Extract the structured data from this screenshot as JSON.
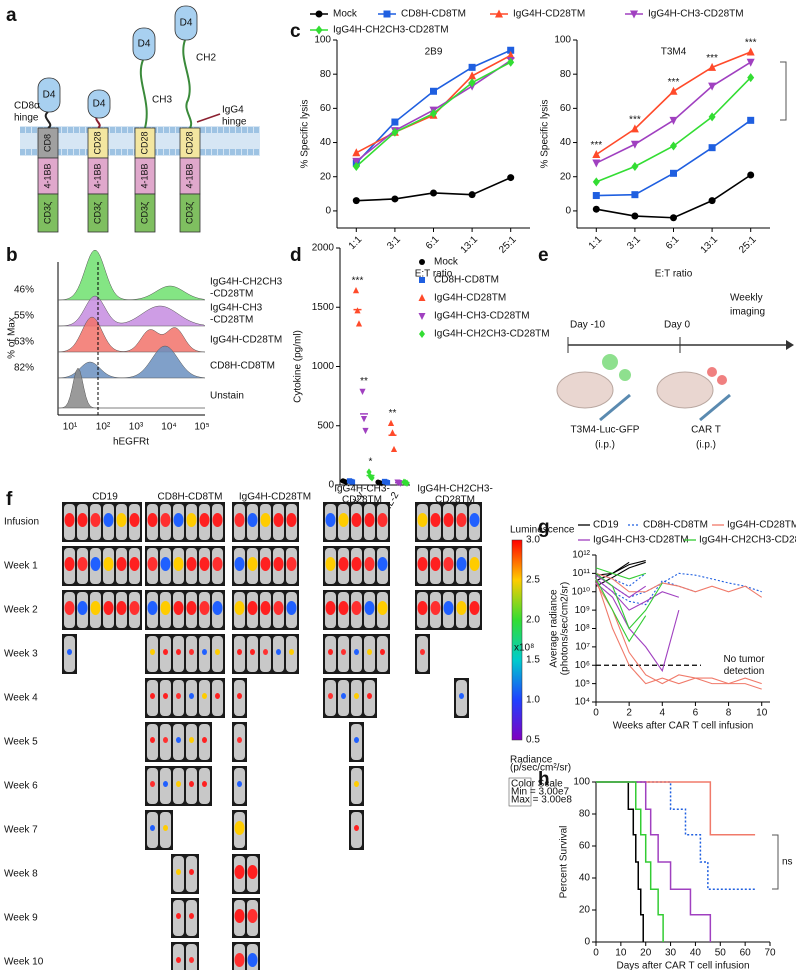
{
  "panel_labels": [
    "a",
    "b",
    "c",
    "d",
    "e",
    "f",
    "g",
    "h"
  ],
  "diagram_a": {
    "domain": "D4",
    "cd8a_hinge": [
      "CD8α",
      "hinge"
    ],
    "tm": [
      "CD8",
      "CD28",
      "CD28",
      "CD28"
    ],
    "costim": "4-1BB",
    "cd3": "CD3ζ",
    "ch3": "CH3",
    "ch2": "CH2",
    "igg4_hinge": [
      "IgG4",
      "hinge"
    ]
  },
  "histogram_b": {
    "ylabel": "% of Max",
    "xlabel": "hEGFRt",
    "xticks": [
      "10¹",
      "10²",
      "10³",
      "10⁴",
      "10⁵"
    ],
    "rows": [
      {
        "label": [
          "IgG4H-CH2CH3",
          "-CD28TM"
        ],
        "percent": "46%"
      },
      {
        "label": [
          "IgG4H-CH3",
          "-CD28TM"
        ],
        "percent": "55%"
      },
      {
        "label": [
          "IgG4H-CD28TM"
        ],
        "percent": "63%"
      },
      {
        "label": [
          "CD8H-CD8TM"
        ],
        "percent": "82%"
      },
      {
        "label": [
          "Unstain"
        ]
      }
    ]
  },
  "schematic_e": {
    "day1": "Day -10",
    "day2": "Day 0",
    "imaging": [
      "Weekly",
      "imaging"
    ],
    "cells": "T3M4-Luc-GFP",
    "cells_route": "(i.p.)",
    "cart": "CAR T",
    "cart_route": "(i.p.)"
  },
  "imaging_f": {
    "groups": [
      [
        "CD19"
      ],
      [
        "CD8H-CD8TM"
      ],
      [
        "IgG4H-CD28TM"
      ],
      [
        "IgG4H-CH3-",
        "CD28TM"
      ],
      [
        "IgG4H-CH2CH3-",
        "CD28TM"
      ]
    ],
    "rows": [
      "Infusion",
      "Week 1",
      "Week 2",
      "Week 3",
      "Week 4",
      "Week 5",
      "Week 6",
      "Week 7",
      "Week 8",
      "Week 9",
      "Week 10"
    ],
    "colorbar": {
      "title": "Luminescence",
      "ticks": [
        "3.0",
        "2.5",
        "2.0",
        "1.5",
        "1.0",
        "0.5"
      ],
      "unit": "x10⁸",
      "radiance": [
        "Radiance",
        "(p/sec/cm²/sr)"
      ],
      "scale": [
        "Color Scale",
        "Min = 3.00e7",
        "Max = 3.00e8"
      ]
    }
  },
  "chart_data": [
    {
      "type": "line",
      "title": "2B9",
      "ylabel": "% Specific lysis",
      "xlabel": "E:T ratio",
      "categories": [
        "1:1",
        "3:1",
        "6:1",
        "13:1",
        "25:1"
      ],
      "ylim": [
        -10,
        100
      ],
      "yticks": [
        0,
        20,
        40,
        60,
        80,
        100
      ],
      "series": [
        {
          "name": "Mock",
          "color": "#000000",
          "values": [
            6,
            7,
            10.5,
            9.5,
            19.5
          ]
        },
        {
          "name": "CD8H-CD8TM",
          "color": "#1f5fe0",
          "values": [
            28,
            52,
            70,
            84,
            94
          ]
        },
        {
          "name": "IgG4H-CD28TM",
          "color": "#ff4a2a",
          "values": [
            34,
            46,
            56,
            79,
            91
          ]
        },
        {
          "name": "IgG4H-CH3-CD28TM",
          "color": "#a040c0",
          "values": [
            29,
            47,
            59,
            73,
            88
          ]
        },
        {
          "name": "IgG4H-CH2CH3-CD28TM",
          "color": "#33dd33",
          "values": [
            26,
            46,
            57,
            75,
            87
          ]
        }
      ]
    },
    {
      "type": "line",
      "title": "T3M4",
      "ylabel": "% Specific lysis",
      "xlabel": "E:T ratio",
      "categories": [
        "1:1",
        "3:1",
        "6:1",
        "13:1",
        "25:1"
      ],
      "ylim": [
        -10,
        100
      ],
      "yticks": [
        0,
        20,
        40,
        60,
        80,
        100
      ],
      "annotations": [
        "***",
        "***",
        "***",
        "***",
        "***"
      ],
      "series": [
        {
          "color": "#000000",
          "values": [
            1,
            -3,
            -4,
            6,
            21
          ]
        },
        {
          "color": "#1f5fe0",
          "values": [
            9,
            9.5,
            22,
            37,
            53
          ]
        },
        {
          "color": "#ff4a2a",
          "values": [
            33,
            48,
            70,
            84,
            93
          ]
        },
        {
          "color": "#a040c0",
          "values": [
            28,
            39,
            53,
            73,
            87
          ]
        },
        {
          "color": "#33dd33",
          "values": [
            17,
            26,
            38,
            55,
            78
          ]
        }
      ]
    },
    {
      "type": "dot",
      "ylabel": "Cytokine (pg/ml)",
      "categories": [
        "IFN-γ",
        "IL-2"
      ],
      "ylim": [
        0,
        2000
      ],
      "yticks": [
        0,
        500,
        1000,
        1500,
        2000
      ],
      "series": [
        {
          "name": "Mock",
          "color": "#000000",
          "values": [
            30,
            20
          ],
          "points": [
            [
              35,
              30,
              25
            ],
            [
              25,
              20,
              15
            ]
          ]
        },
        {
          "name": "CD8H-CD8TM",
          "color": "#1f5fe0",
          "values": [
            30,
            25
          ],
          "points": [
            [
              35,
              30,
              25
            ],
            [
              30,
              25,
              20
            ]
          ]
        },
        {
          "name": "IgG4H-CD28TM",
          "color": "#ff4a2a",
          "values": [
            1480,
            420
          ],
          "points": [
            [
              1640,
              1470,
              1360
            ],
            [
              520,
              440,
              300
            ]
          ],
          "annotations": [
            "***",
            "**"
          ]
        },
        {
          "name": "IgG4H-CH3-CD28TM",
          "color": "#a040c0",
          "values": [
            600,
            20
          ],
          "points": [
            [
              790,
              560,
              460
            ],
            [
              25,
              20,
              15
            ]
          ],
          "annotations": [
            "**",
            null
          ]
        },
        {
          "name": "IgG4H-CH2CH3-CD28TM",
          "color": "#33dd33",
          "values": [
            80,
            20
          ],
          "points": [
            [
              110,
              70,
              60
            ],
            [
              25,
              20,
              15
            ]
          ],
          "annotations": [
            "*",
            null
          ]
        }
      ]
    },
    {
      "type": "line",
      "yscale": "log",
      "ylabel": [
        "Average radiance",
        "(photons/sec/cm2/sr)"
      ],
      "xlabel": "Weeks after CAR T cell infusion",
      "x": [
        0,
        1,
        2,
        3,
        4,
        5,
        6,
        7,
        8,
        9,
        10
      ],
      "xlim": [
        0,
        10.5
      ],
      "xticks": [
        0,
        2,
        4,
        6,
        8,
        10
      ],
      "ylim": [
        10000,
        1000000000000
      ],
      "yticks": [
        {
          "value": 10000,
          "label": "10⁴"
        },
        {
          "value": 100000,
          "label": "10⁵"
        },
        {
          "value": 1000000,
          "label": "10⁶"
        },
        {
          "value": 10000000,
          "label": "10⁷"
        },
        {
          "value": 100000000,
          "label": "10⁸"
        },
        {
          "value": 1000000000,
          "label": "10⁹"
        },
        {
          "value": 10000000000,
          "label": "10¹⁰"
        },
        {
          "value": 100000000000,
          "label": "10¹¹"
        },
        {
          "value": 1000000000000,
          "label": "10¹²"
        }
      ],
      "threshold": 1000000,
      "threshold_label": [
        "No tumor",
        "detection"
      ],
      "series": [
        {
          "name": "CD19",
          "color": "#000000",
          "linestyle": "solid",
          "values": [
            [
              40000000000.0,
              100000000000.0,
              300000000000.0,
              500000000000.0,
              null,
              null,
              null,
              null,
              null,
              null,
              null
            ],
            [
              20000000000.0,
              60000000000.0,
              200000000000.0,
              400000000000.0,
              null,
              null,
              null,
              null,
              null,
              null,
              null
            ],
            [
              80000000000.0,
              100000000000.0,
              400000000000.0,
              null,
              null,
              null,
              null,
              null,
              null,
              null,
              null
            ]
          ]
        },
        {
          "name": "CD8H-CD8TM",
          "color": "#1f5fe0",
          "linestyle": "dotted",
          "values": [
            [
              100000000000.0,
              20000000000.0,
              5000000000.0,
              10000000000.0,
              30000000000.0,
              100000000000.0,
              80000000000.0,
              50000000000.0,
              30000000000.0,
              20000000000.0,
              10000000000.0
            ],
            [
              50000000000.0,
              10000000000.0,
              3000000000.0,
              2000000000.0,
              40000000000.0,
              20000000000.0,
              10000000000.0,
              null,
              null,
              null,
              null
            ],
            [
              100000000000.0,
              50000000000.0,
              20000000000.0,
              100000000000.0,
              null,
              null,
              null,
              null,
              null,
              null,
              null
            ]
          ]
        },
        {
          "name": "IgG4H-CD28TM",
          "color": "#f07a6a",
          "linestyle": "solid",
          "values": [
            [
              50000000000.0,
              100000000.0,
              1000000.0,
              100000.0,
              200000.0,
              100000.0,
              200000.0,
              100000.0,
              100000.0,
              200000.0,
              100000.0
            ],
            [
              30000000000.0,
              1000000000.0,
              5000000.0,
              300000.0,
              100000.0,
              300000.0,
              200000.0,
              200000.0,
              100000.0,
              100000.0,
              50000.0
            ],
            [
              100000000000.0,
              50000000000.0,
              10000000000.0,
              10000000000.0,
              30000000000.0,
              20000000000.0,
              10000000000.0,
              20000000000.0,
              10000000000.0,
              20000000000.0,
              5000000000.0
            ]
          ]
        },
        {
          "name": "IgG4H-CH3-CD28TM",
          "color": "#a040c0",
          "linestyle": "solid",
          "values": [
            [
              50000000000.0,
              10000000000.0,
              1000000000.0,
              3000000000.0,
              10000000000.0,
              5000000000.0,
              null,
              null,
              null,
              null,
              null
            ],
            [
              30000000000.0,
              5000000000.0,
              100000000.0,
              10000000.0,
              500000.0,
              1000000000.0,
              null,
              null,
              null,
              null,
              null
            ],
            [
              80000000000.0,
              20000000000.0,
              5000000000.0,
              20000000000.0,
              null,
              null,
              null,
              null,
              null,
              null,
              null
            ]
          ]
        },
        {
          "name": "IgG4H-CH2CH3-CD28TM",
          "color": "#33cc33",
          "linestyle": "solid",
          "values": [
            [
              100000000000.0,
              20000000000.0,
              100000000.0,
              1000000000.0,
              30000000000.0,
              null,
              null,
              null,
              null,
              null,
              null
            ],
            [
              50000000000.0,
              1000000000.0,
              20000000.0,
              500000000.0,
              null,
              null,
              null,
              null,
              null,
              null,
              null
            ],
            [
              200000000000.0,
              100000000000.0,
              50000000000.0,
              100000000000.0,
              null,
              null,
              null,
              null,
              null,
              null,
              null
            ]
          ]
        }
      ]
    },
    {
      "type": "step",
      "ylabel": "Percent Survival",
      "xlabel": "Days after CAR T cell infusion",
      "xlim": [
        0,
        70
      ],
      "xticks": [
        0,
        10,
        20,
        30,
        40,
        50,
        60,
        70
      ],
      "ylim": [
        0,
        100
      ],
      "yticks": [
        0,
        20,
        40,
        60,
        80,
        100
      ],
      "annotation": "ns",
      "series": [
        {
          "color": "#000000",
          "linestyle": "solid",
          "x": [
            0,
            13,
            15,
            16,
            17,
            18,
            19
          ],
          "values": [
            100,
            83,
            67,
            50,
            33,
            17,
            0
          ]
        },
        {
          "color": "#1f5fe0",
          "linestyle": "dotted",
          "x": [
            0,
            30,
            36,
            42,
            45,
            64
          ],
          "values": [
            100,
            83,
            67,
            50,
            33,
            33
          ]
        },
        {
          "color": "#f07a6a",
          "linestyle": "solid",
          "x": [
            0,
            46,
            64
          ],
          "values": [
            100,
            67,
            67
          ]
        },
        {
          "color": "#a040c0",
          "linestyle": "solid",
          "x": [
            0,
            20,
            22,
            25,
            30,
            38,
            46
          ],
          "values": [
            100,
            83,
            67,
            50,
            33,
            17,
            0
          ]
        },
        {
          "color": "#33cc33",
          "linestyle": "solid",
          "x": [
            0,
            16,
            18,
            20,
            22,
            25,
            27
          ],
          "values": [
            100,
            83,
            67,
            50,
            33,
            17,
            0
          ]
        }
      ]
    }
  ]
}
